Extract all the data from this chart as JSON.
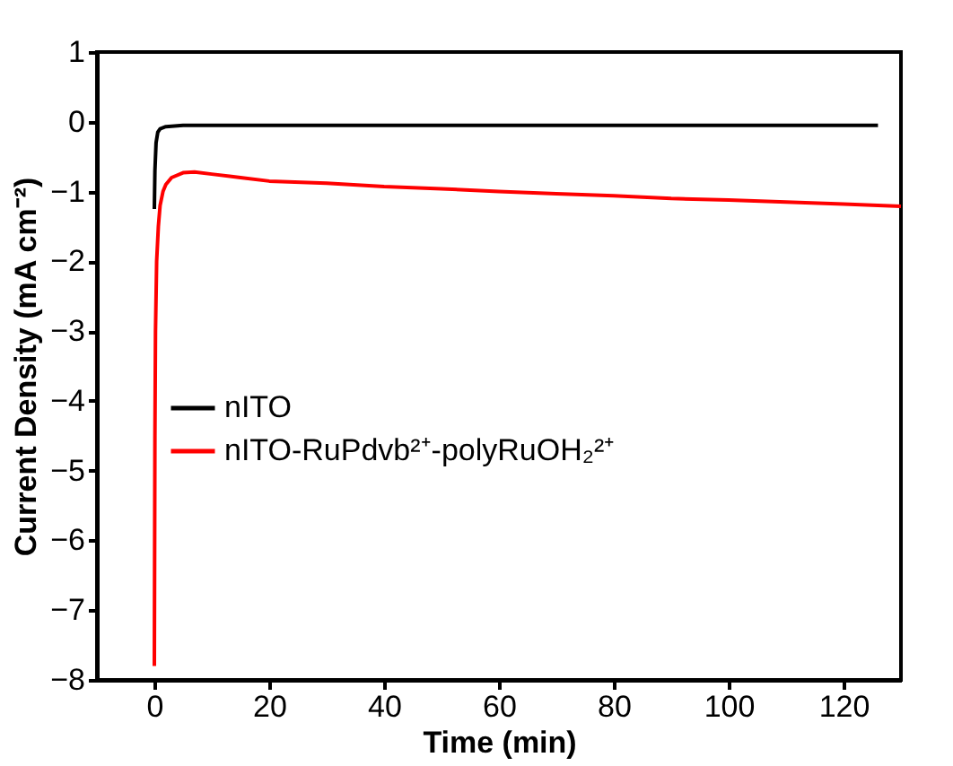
{
  "chart_data": {
    "type": "line",
    "xlabel": "Time (min)",
    "ylabel": "Current Density (mA cm⁻²)",
    "xlim": [
      -10,
      130
    ],
    "xticks": [
      0,
      20,
      40,
      60,
      80,
      100,
      120
    ],
    "ylim": [
      -8,
      1
    ],
    "yticks": [
      -8,
      -7,
      -6,
      -5,
      -4,
      -3,
      -2,
      -1,
      0,
      1
    ],
    "grid": false,
    "legend": "left",
    "line_style": "solid",
    "marker": "none",
    "series": [
      {
        "name": "nITO",
        "color": "#000000",
        "x": [
          0,
          0.1,
          0.3,
          0.6,
          1,
          2,
          5,
          20,
          60,
          100,
          126
        ],
        "values": [
          -1.25,
          -0.7,
          -0.3,
          -0.15,
          -0.1,
          -0.07,
          -0.05,
          -0.05,
          -0.05,
          -0.05,
          -0.05
        ]
      },
      {
        "name": "nITO-RuPdvb²⁺-polyRuOH₂²⁺",
        "color": "#ff0000",
        "x": [
          0,
          0.1,
          0.2,
          0.4,
          0.7,
          1,
          1.5,
          2,
          3,
          5,
          7,
          10,
          15,
          20,
          30,
          40,
          50,
          60,
          70,
          80,
          90,
          100,
          110,
          120,
          130
        ],
        "values": [
          -7.8,
          -4.5,
          -3,
          -2,
          -1.5,
          -1.2,
          -1.0,
          -0.9,
          -0.8,
          -0.73,
          -0.72,
          -0.75,
          -0.8,
          -0.85,
          -0.88,
          -0.93,
          -0.96,
          -1.0,
          -1.03,
          -1.06,
          -1.1,
          -1.12,
          -1.15,
          -1.18,
          -1.21
        ]
      }
    ]
  }
}
